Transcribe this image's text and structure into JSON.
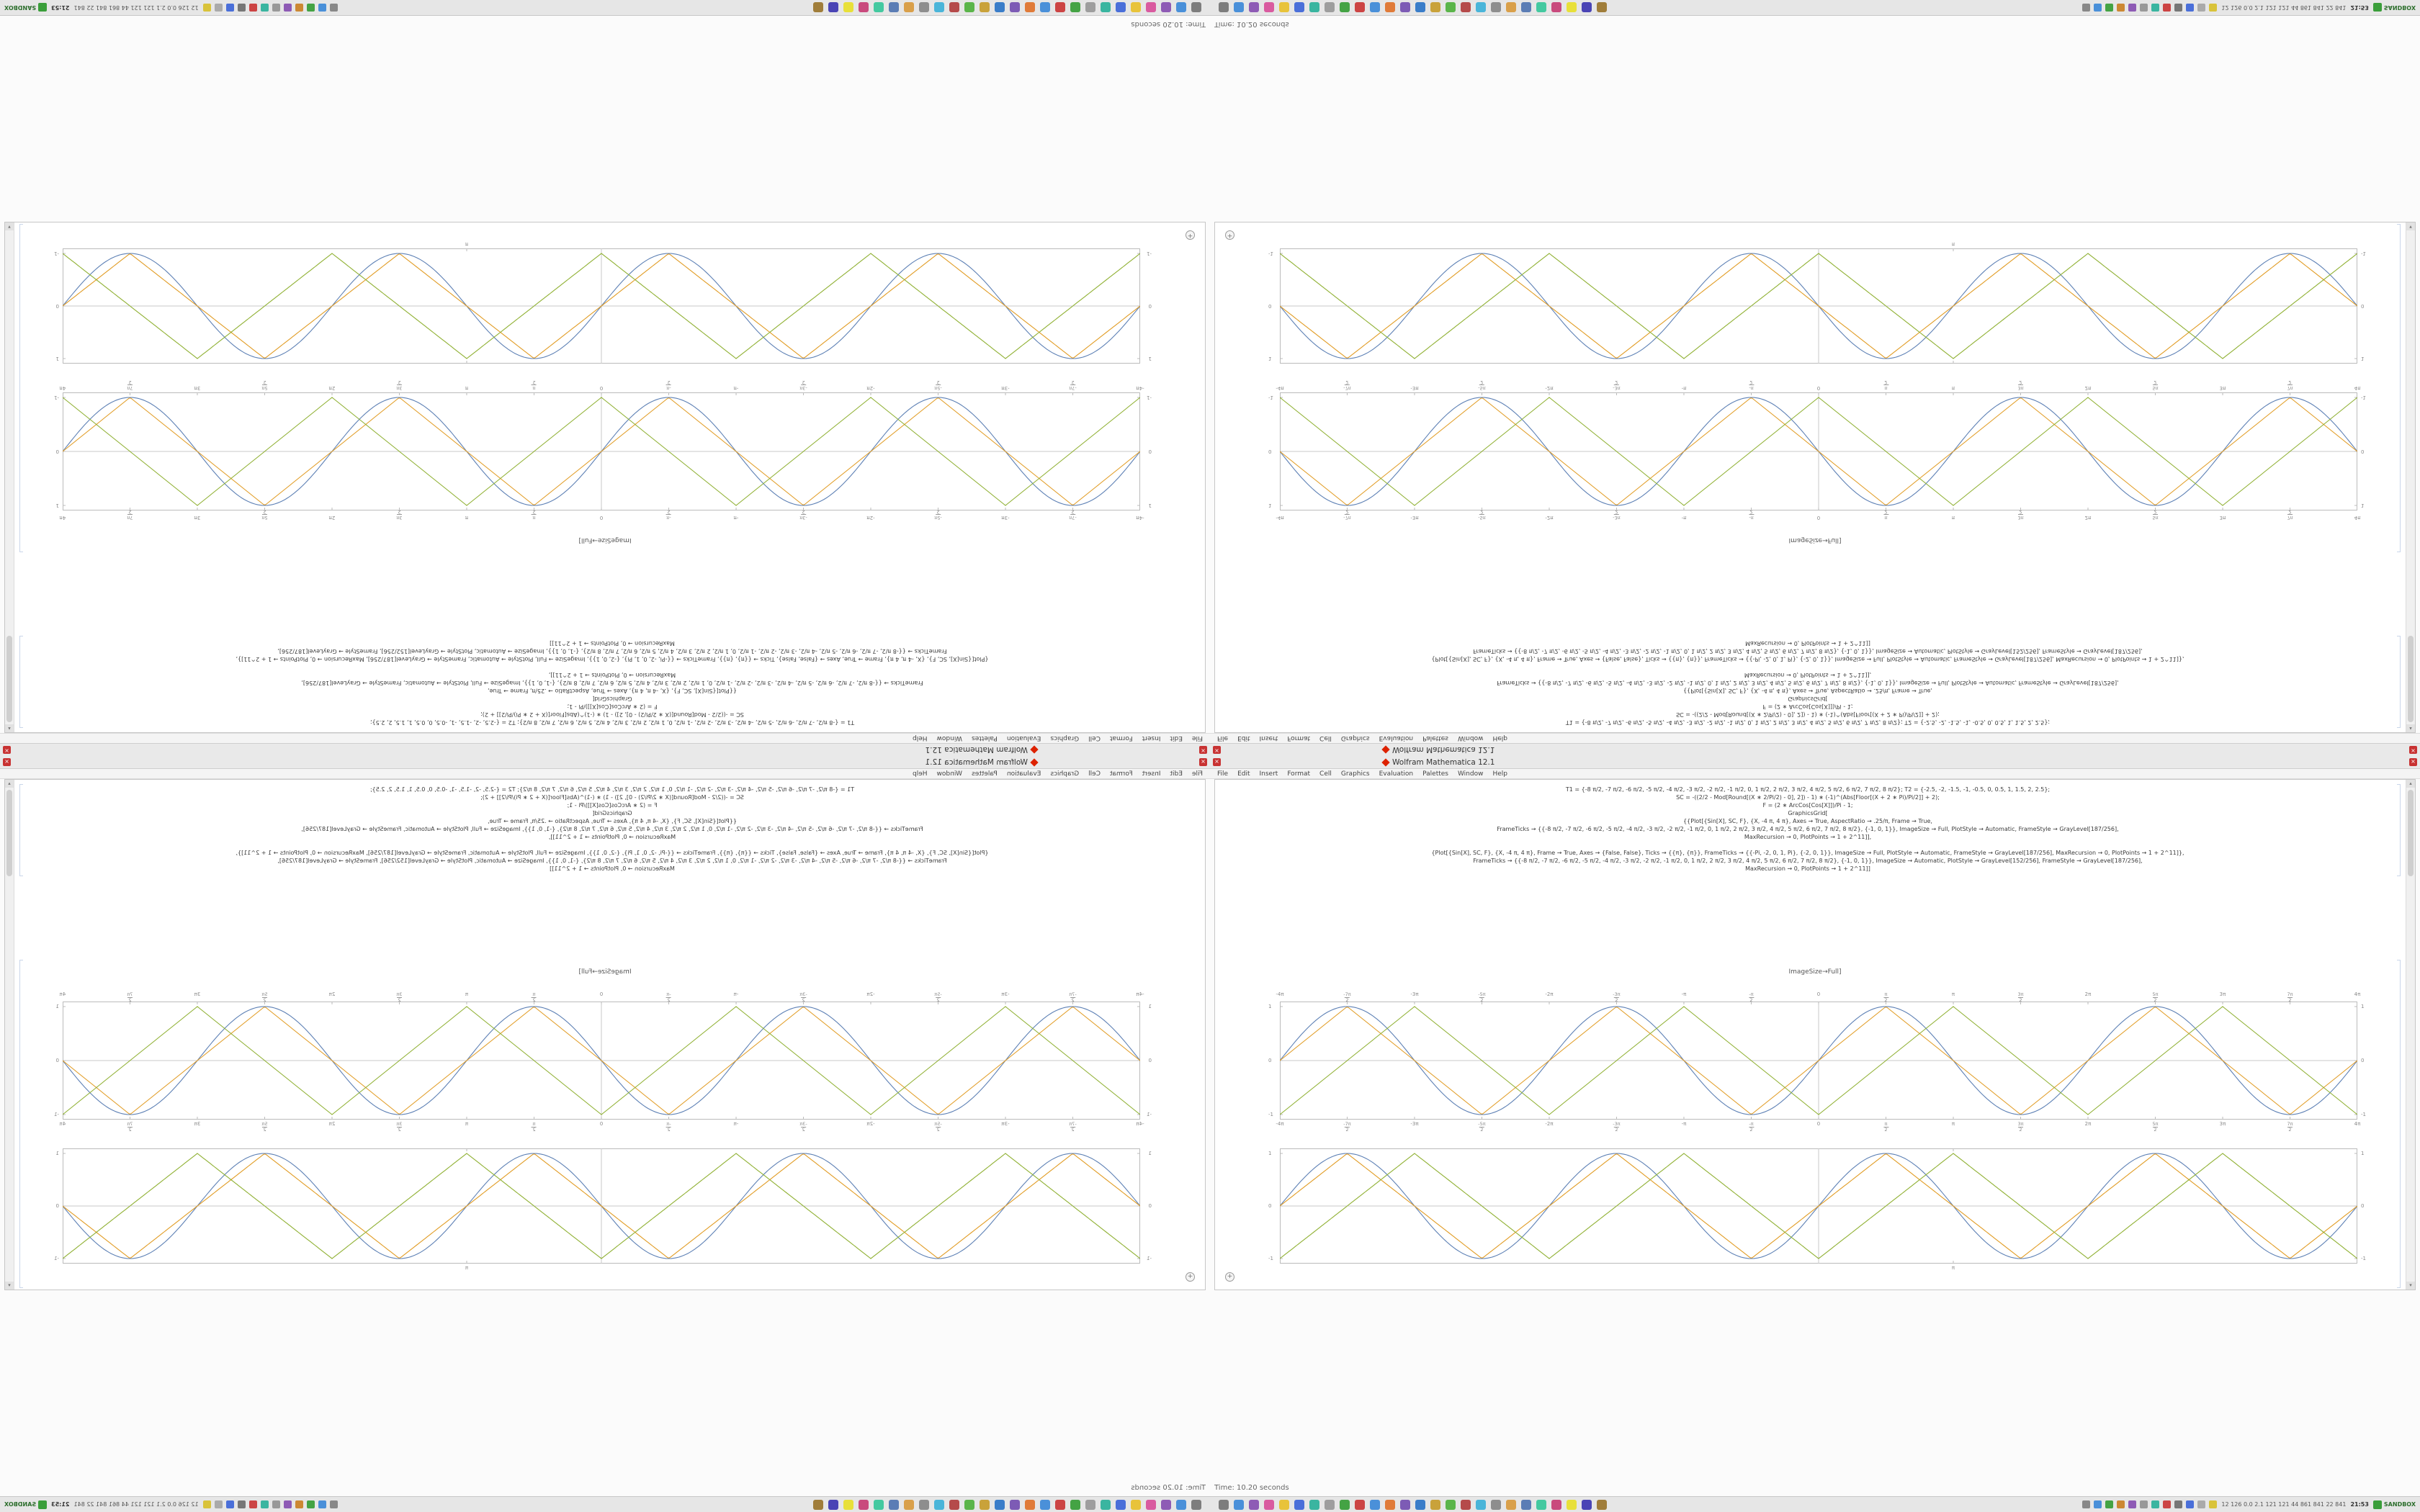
{
  "app": {
    "title": "Wolfram Mathematica 12.1",
    "menu": [
      "File",
      "Edit",
      "Insert",
      "Format",
      "Cell",
      "Graphics",
      "Evaluation",
      "Palettes",
      "Window",
      "Help"
    ]
  },
  "colors": {
    "series_blue": "#5e81b5",
    "series_orange": "#e19c24",
    "series_green": "#8fb032",
    "frame_gray": "#bbbbbb",
    "close_red": "#c83232",
    "sandbox_green": "#3a9e3a"
  },
  "code": {
    "cell1": [
      "T1 = {-8 π/2, -7 π/2, -6 π/2, -5 π/2, -4 π/2, -3 π/2, -2 π/2, -1 π/2, 0, 1 π/2, 2 π/2, 3 π/2, 4 π/2, 5 π/2, 6 π/2, 7 π/2, 8 π/2};  T2 = {-2.5, -2, -1.5, -1, -0.5, 0, 0.5, 1, 1.5, 2, 2.5};",
      "SC = -((2/2 - Mod[Round[(X ∗ 2/Pi/2) - 0], 2]) - 1) ∗ (-1)^(Abs[Floor[(X + 2 ∗ Pi)/Pi/2]] + 2);",
      "F = (2 ∗ ArcCos[Cos[X]])/Pi - 1;",
      "GraphicsGrid[",
      "{{Plot[{Sin[X], SC, F}, {X, -4 π, 4 π}, Axes → True, AspectRatio → .25/π, Frame → True,",
      "FrameTicks → {{-8 π/2, -7 π/2, -6 π/2, -5 π/2, -4 π/2, -3 π/2, -2 π/2, -1 π/2, 0, 1 π/2, 2 π/2, 3 π/2, 4 π/2, 5 π/2, 6 π/2, 7 π/2, 8 π/2}, {-1, 0, 1}}, ImageSize → Full, PlotStyle → Automatic, FrameStyle → GrayLevel[187/256],",
      "MaxRecursion → 0, PlotPoints → 1 + 2^11]],"
    ],
    "cell2": [
      "{Plot[{Sin[X], SC, F}, {X, -4 π, 4 π}, Frame → True, Axes → {False, False}, Ticks → {{π}, {π}}, FrameTicks → {{-Pi, -2, 0, 1, Pi}, {-2, 0, 1}}, ImageSize → Full, PlotStyle → Automatic, FrameStyle → GrayLevel[187/256], MaxRecursion → 0, PlotPoints → 1 + 2^11]},",
      "FrameTicks → {{-8 π/2, -7 π/2, -6 π/2, -5 π/2, -4 π/2, -3 π/2, -2 π/2, -1 π/2, 0, 1 π/2, 2 π/2, 3 π/2, 4 π/2, 5 π/2, 6 π/2, 7 π/2, 8 π/2}, {-1, 0, 1}}, ImageSize → Automatic, PlotStyle → GrayLevel[152/256], FrameStyle → GrayLevel[187/256],",
      "MaxRecursion → 0, PlotPoints → 1 + 2^11]]"
    ],
    "output_label": "ImageSize→Full]"
  },
  "status": {
    "time_text": "Time: 10.20 seconds"
  },
  "taskbar": {
    "app_icon_colors": [
      "#7d7d7d",
      "#4a90d9",
      "#8e5bb5",
      "#d95ba0",
      "#e8c33a",
      "#4a6fd9",
      "#3ab5a0",
      "#9e9e9e",
      "#44a344",
      "#cc4444",
      "#4a90d9",
      "#e07b39",
      "#7d5bb5",
      "#3a7dc9",
      "#c9a23a",
      "#5bb54a",
      "#b54a4a",
      "#4ab5d9",
      "#8e8e8e",
      "#d9a04a",
      "#5b7db5",
      "#44c9a0",
      "#c94a7d",
      "#e8e03a",
      "#4a44b5",
      "#a07d3a"
    ],
    "tray_icon_colors": [
      "#888888",
      "#4a90d9",
      "#44a344",
      "#cc8833",
      "#8e5bb5",
      "#999999",
      "#3ab5a0",
      "#cc4444",
      "#777777",
      "#4a6fd9",
      "#aaaaaa",
      "#d9c33a"
    ],
    "tray_stats": "12 126 0.0 2.1 121 121 44 861 841 22 841",
    "tray_clock": "21:53",
    "tray_label": "SANDBOX"
  },
  "chart_data": [
    {
      "type": "line",
      "title": "",
      "xlabel": "",
      "ylabel": "",
      "x_range": [
        -12.566,
        12.566
      ],
      "y_range": [
        -1,
        1
      ],
      "frame": true,
      "axes": true,
      "grid": false,
      "frame_color": "#bbbbbb",
      "x_tick_labels": [
        "-4π",
        "-7π/2",
        "-3π",
        "-5π/2",
        "-2π",
        "-3π/2",
        "-π",
        "-π/2",
        "0",
        "π/2",
        "π",
        "3π/2",
        "2π",
        "5π/2",
        "3π",
        "7π/2",
        "4π"
      ],
      "x_tick_values": [
        -12.566,
        -10.996,
        -9.425,
        -7.854,
        -6.283,
        -4.712,
        -3.142,
        -1.571,
        0,
        1.571,
        3.142,
        4.712,
        6.283,
        7.854,
        9.425,
        10.996,
        12.566
      ],
      "y_tick_labels": [
        "-1",
        "0",
        "1"
      ],
      "y_tick_values": [
        -1,
        0,
        1
      ],
      "series": [
        {
          "name": "Sin[X]",
          "color": "#5e81b5",
          "fn": "sin"
        },
        {
          "name": "SC",
          "color": "#e19c24",
          "fn": "triangle_sin"
        },
        {
          "name": "F",
          "color": "#8fb032",
          "fn": "triangle_cos"
        }
      ]
    },
    {
      "type": "line",
      "title": "",
      "xlabel": "",
      "ylabel": "",
      "x_range": [
        -12.566,
        12.566
      ],
      "y_range": [
        -1,
        1
      ],
      "frame": true,
      "axes": true,
      "grid": false,
      "frame_color": "#bbbbbb",
      "x_tick_labels": [
        "π"
      ],
      "x_tick_values": [
        3.1416
      ],
      "y_tick_labels": [
        "-1",
        "0",
        "1"
      ],
      "y_tick_values": [
        -1,
        0,
        1
      ],
      "series": [
        {
          "name": "Sin[X]",
          "color": "#5e81b5",
          "fn": "sin"
        },
        {
          "name": "SC",
          "color": "#e19c24",
          "fn": "triangle_sin"
        },
        {
          "name": "F",
          "color": "#8fb032",
          "fn": "triangle_cos"
        }
      ]
    }
  ]
}
